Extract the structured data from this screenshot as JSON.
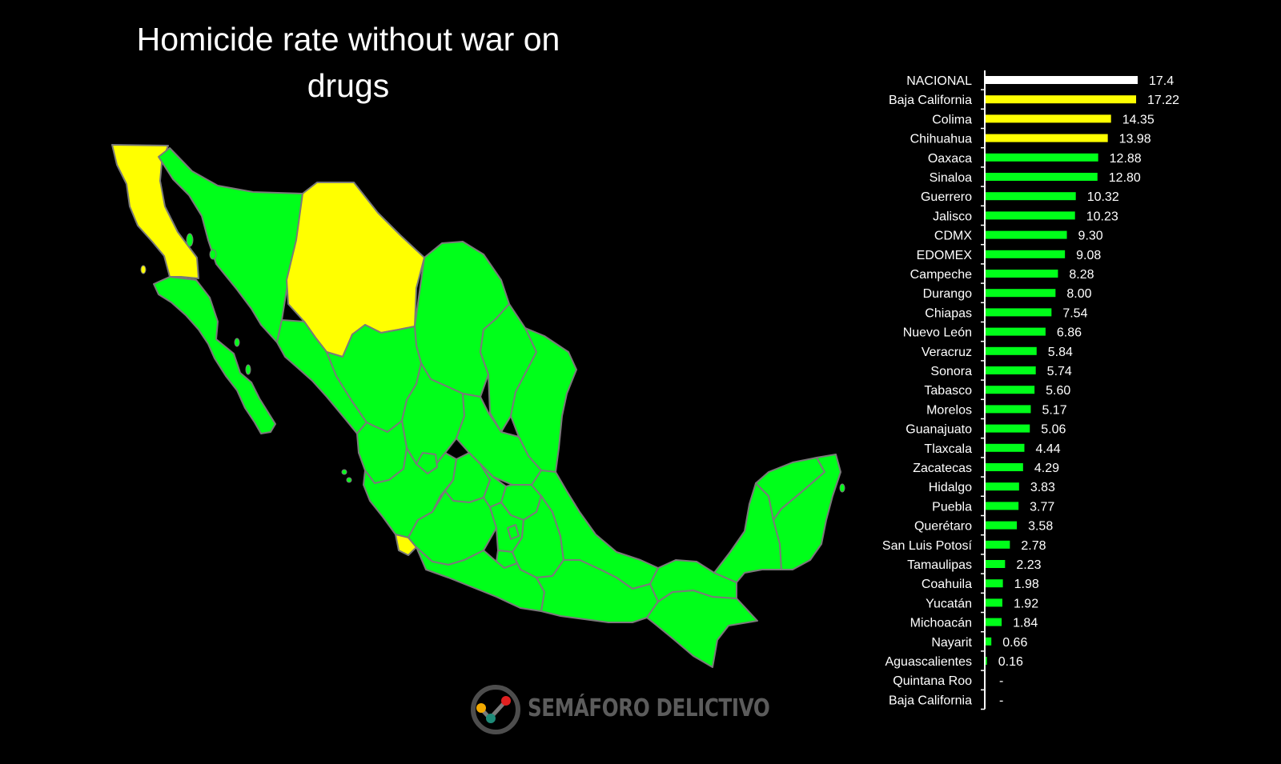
{
  "title": "Homicide rate without war on drugs",
  "logo_text": "SEMÁFORO DELICTIVO",
  "colors": {
    "background": "#000000",
    "national": "#ffffff",
    "high": "#ffff00",
    "low": "#00ff1a",
    "state_border": "#7a7a7a"
  },
  "map": {
    "yellow_states": [
      "Baja California",
      "Chihuahua",
      "Colima"
    ],
    "green_states": "all other states"
  },
  "chart_data": {
    "type": "bar",
    "orientation": "horizontal",
    "xlim": [
      0,
      17.4
    ],
    "categories": [
      "NACIONAL",
      "Baja California",
      "Colima",
      "Chihuahua",
      "Oaxaca",
      "Sinaloa",
      "Guerrero",
      "Jalisco",
      "CDMX",
      "EDOMEX",
      "Campeche",
      "Durango",
      "Chiapas",
      "Nuevo León",
      "Veracruz",
      "Sonora",
      "Tabasco",
      "Morelos",
      "Guanajuato",
      "Tlaxcala",
      "Zacatecas",
      "Hidalgo",
      "Puebla",
      "Querétaro",
      "San Luis Potosí",
      "Tamaulipas",
      "Coahuila",
      "Yucatán",
      "Michoacán",
      "Nayarit",
      "Aguascalientes",
      "Quintana Roo",
      "Baja California"
    ],
    "values": [
      17.4,
      17.22,
      14.35,
      13.98,
      12.88,
      12.8,
      10.32,
      10.23,
      9.3,
      9.08,
      8.28,
      8.0,
      7.54,
      6.86,
      5.84,
      5.74,
      5.6,
      5.17,
      5.06,
      4.44,
      4.29,
      3.83,
      3.77,
      3.58,
      2.78,
      2.23,
      1.98,
      1.92,
      1.84,
      0.66,
      0.16,
      null,
      null
    ],
    "value_labels": [
      "17.4",
      "17.22",
      "14.35",
      "13.98",
      "12.88",
      "12.80",
      "10.32",
      "10.23",
      "9.30",
      "9.08",
      "8.28",
      "8.00",
      "7.54",
      "6.86",
      "5.84",
      "5.74",
      "5.60",
      "5.17",
      "5.06",
      "4.44",
      "4.29",
      "3.83",
      "3.77",
      "3.58",
      "2.78",
      "2.23",
      "1.98",
      "1.92",
      "1.84",
      "0.66",
      "0.16",
      "-",
      "-"
    ],
    "bar_colors": [
      "#ffffff",
      "#ffff00",
      "#ffff00",
      "#ffff00",
      "#00ff1a",
      "#00ff1a",
      "#00ff1a",
      "#00ff1a",
      "#00ff1a",
      "#00ff1a",
      "#00ff1a",
      "#00ff1a",
      "#00ff1a",
      "#00ff1a",
      "#00ff1a",
      "#00ff1a",
      "#00ff1a",
      "#00ff1a",
      "#00ff1a",
      "#00ff1a",
      "#00ff1a",
      "#00ff1a",
      "#00ff1a",
      "#00ff1a",
      "#00ff1a",
      "#00ff1a",
      "#00ff1a",
      "#00ff1a",
      "#00ff1a",
      "#00ff1a",
      "#00ff1a",
      "#00ff1a",
      "#00ff1a"
    ]
  }
}
